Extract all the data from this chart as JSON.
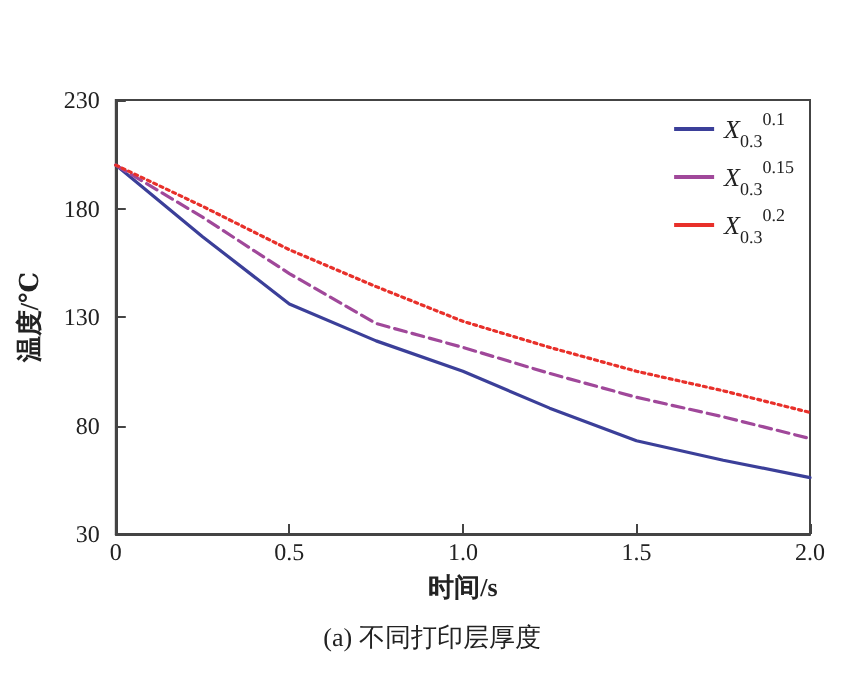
{
  "chart_data": {
    "type": "line",
    "title": "(a) 不同打印层厚度",
    "xlabel": "时间/s",
    "ylabel": "温度/℃",
    "x": [
      0,
      0.25,
      0.5,
      0.75,
      1.0,
      1.25,
      1.5,
      1.75,
      2.0
    ],
    "series": [
      {
        "name": "X$_{0.3}$$^{0.1}$",
        "color": "#3b3f99",
        "line_style": "solid",
        "values": [
          200,
          167,
          136,
          119,
          105,
          88,
          73,
          64,
          56
        ]
      },
      {
        "name": "X$_{0.3}$$^{0.15}$",
        "color": "#a0489a",
        "line_style": "dashed",
        "values": [
          200,
          176,
          150,
          127,
          116,
          104,
          93,
          84,
          74
        ]
      },
      {
        "name": "X$_{0.3}$$^{0.2}$",
        "color": "#e8302a",
        "line_style": "dotted",
        "values": [
          200,
          181,
          161,
          144,
          128,
          116,
          105,
          96,
          86
        ]
      }
    ],
    "xlim": [
      0,
      2.0
    ],
    "xticks": [
      0,
      0.5,
      {
        "value": 1,
        "label": "1.0"
      },
      1.5,
      {
        "value": 2,
        "label": "2.0"
      }
    ],
    "ylim": [
      30,
      230
    ],
    "yticks": [
      30,
      80,
      130,
      180,
      230
    ],
    "grid": false,
    "legend": "top right",
    "marker": "none"
  }
}
